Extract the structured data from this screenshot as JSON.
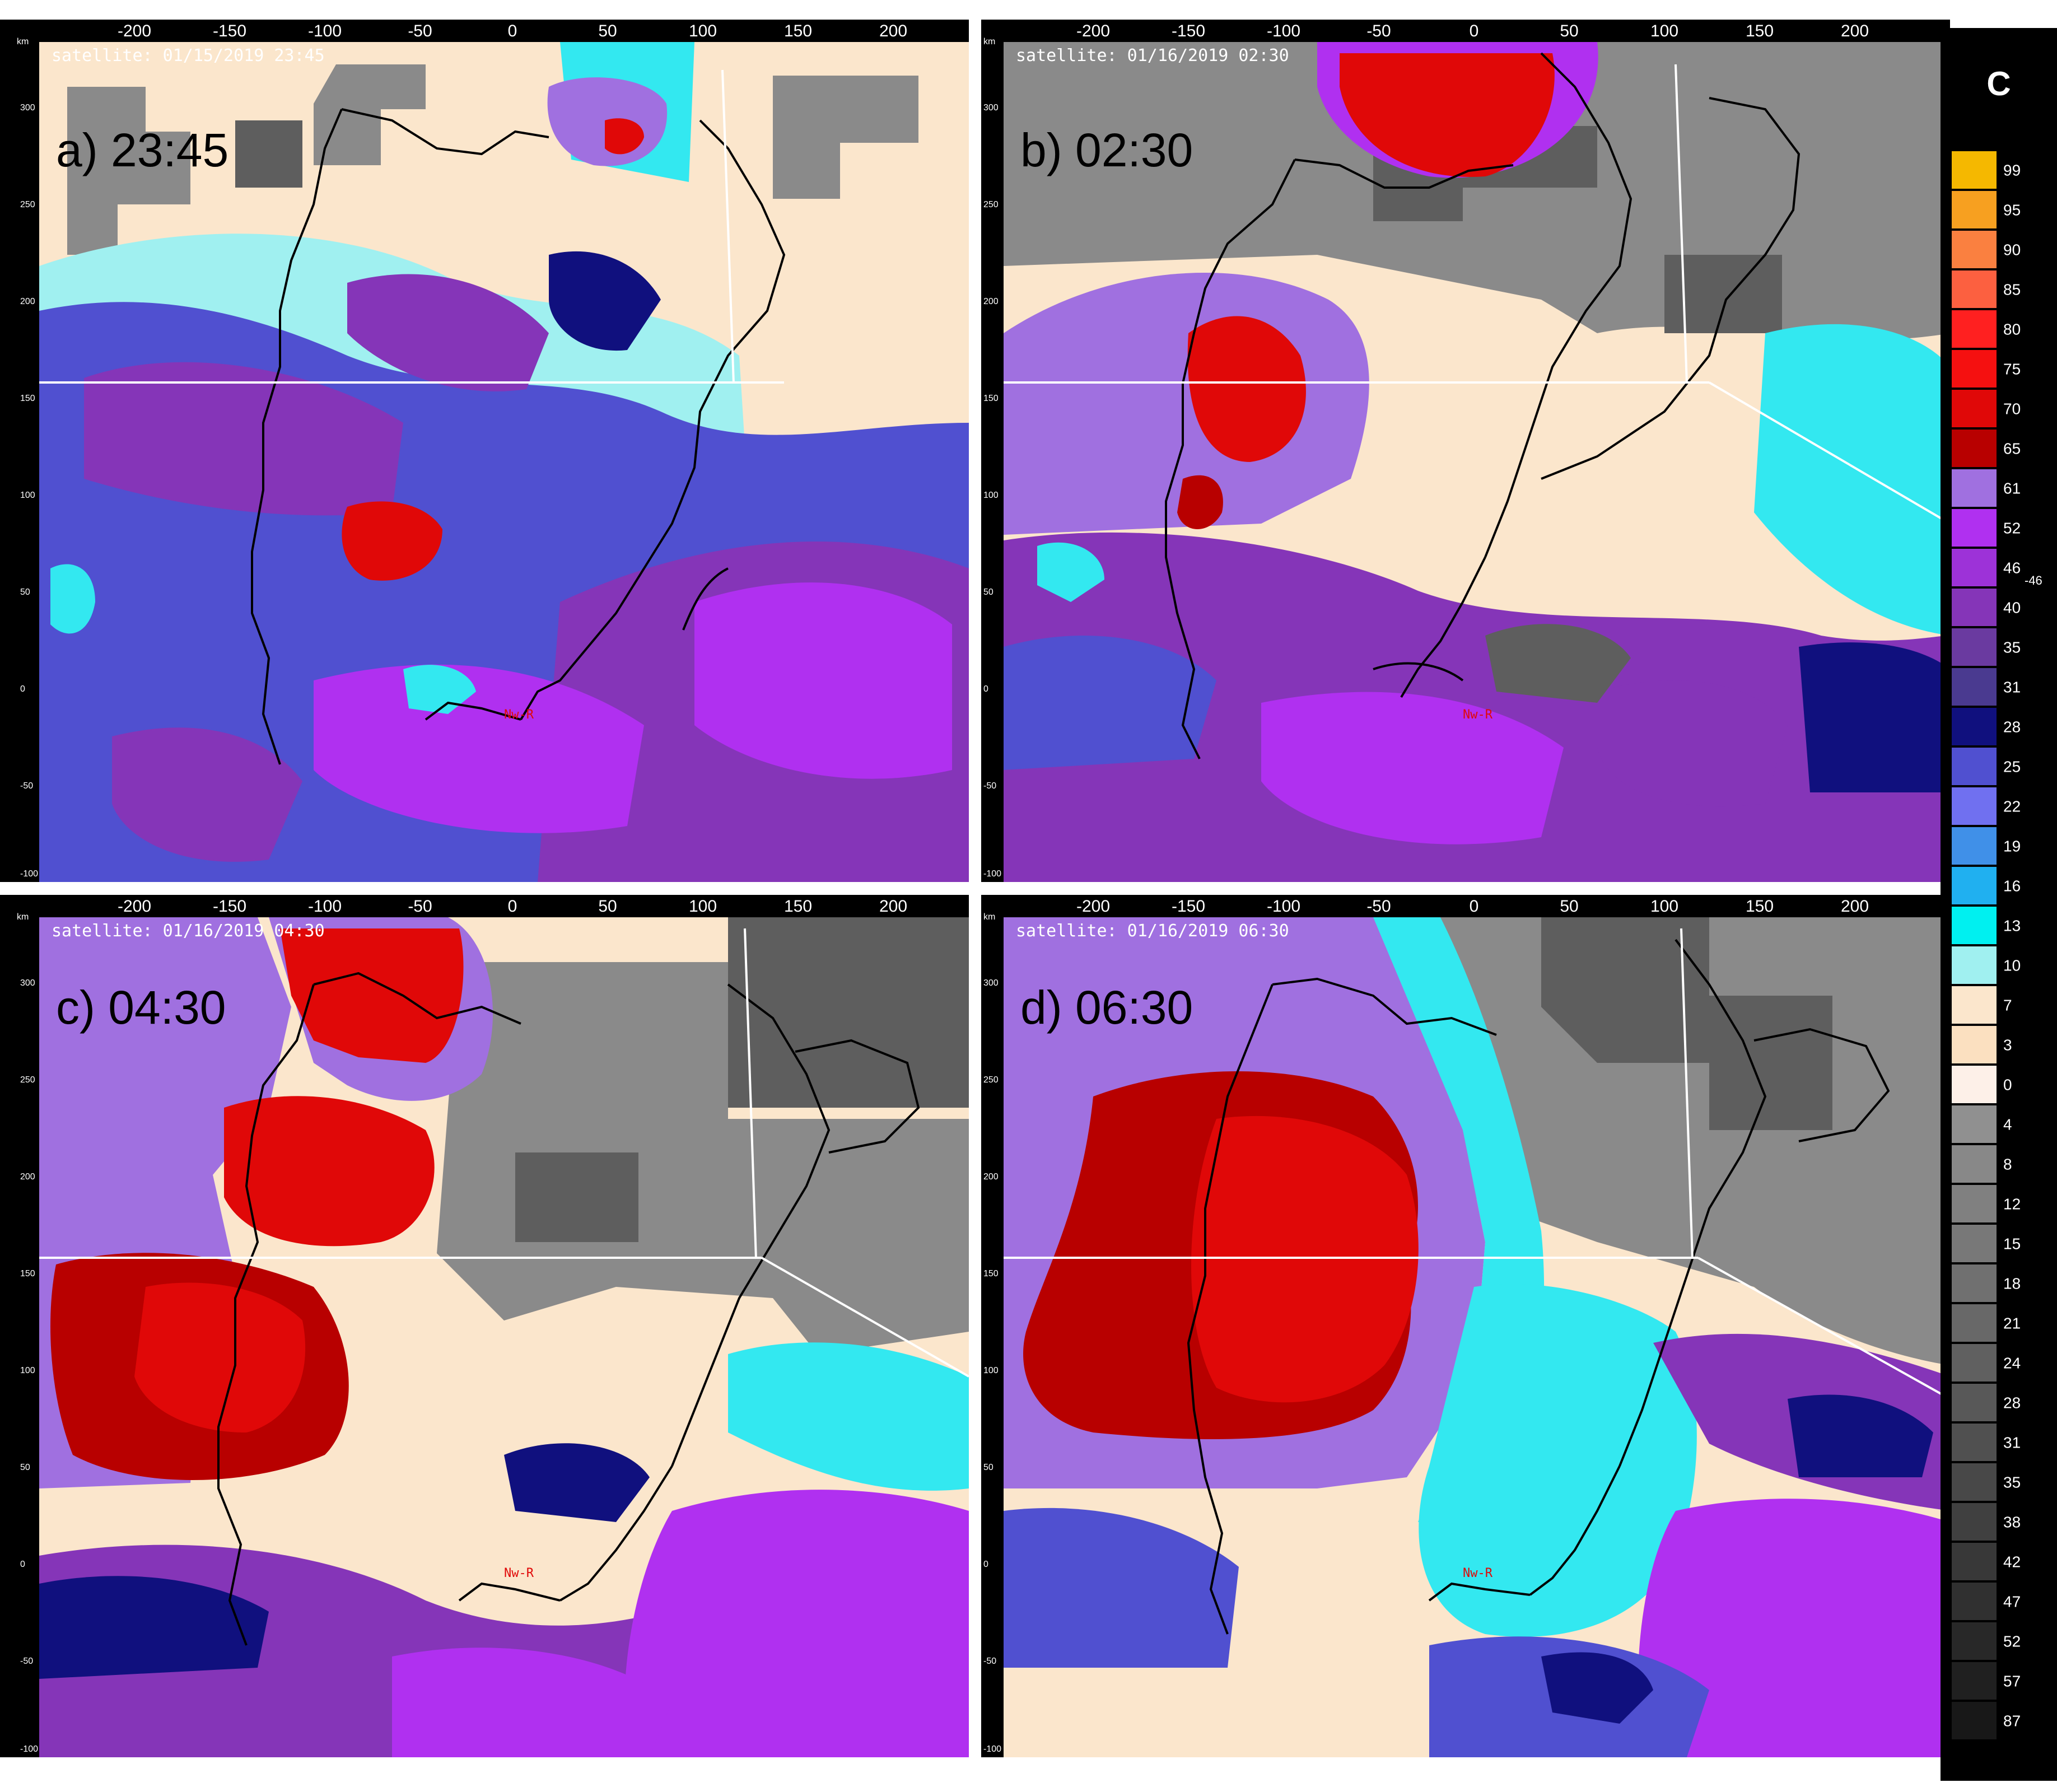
{
  "panels": [
    {
      "label": "a) 23:45",
      "timestamp": "satellite: 01/15/2019 23:45",
      "site_label": "Nw-R"
    },
    {
      "label": "b) 02:30",
      "timestamp": "satellite: 01/16/2019 02:30",
      "site_label": "Nw-R"
    },
    {
      "label": "c) 04:30",
      "timestamp": "satellite: 01/16/2019 04:30",
      "site_label": "Nw-R"
    },
    {
      "label": "d) 06:30",
      "timestamp": "satellite: 01/16/2019 06:30",
      "site_label": "Nw-R"
    }
  ],
  "x_axis": {
    "unit": "km",
    "ticks": [
      "-200",
      "-150",
      "-100",
      "-50",
      "0",
      "50",
      "100",
      "150",
      "200"
    ]
  },
  "y_axis": {
    "unit": "km",
    "ticks": [
      "300",
      "250",
      "200",
      "150",
      "100",
      "50",
      "0",
      "-50",
      "-100"
    ]
  },
  "colorbar": {
    "title": "C",
    "marker": "-46",
    "entries": [
      {
        "label": "99",
        "color": "#f5b800"
      },
      {
        "label": "95",
        "color": "#f7a020"
      },
      {
        "label": "90",
        "color": "#fa8040"
      },
      {
        "label": "85",
        "color": "#fc6040"
      },
      {
        "label": "80",
        "color": "#ff2020"
      },
      {
        "label": "75",
        "color": "#f51010"
      },
      {
        "label": "70",
        "color": "#e00808"
      },
      {
        "label": "65",
        "color": "#b80000"
      },
      {
        "label": "61",
        "color": "#a070e0"
      },
      {
        "label": "52",
        "color": "#b030f0"
      },
      {
        "label": "46",
        "color": "#9d32d8"
      },
      {
        "label": "40",
        "color": "#8535b8"
      },
      {
        "label": "35",
        "color": "#6a3aa0"
      },
      {
        "label": "31",
        "color": "#4a3a90"
      },
      {
        "label": "28",
        "color": "#10107e"
      },
      {
        "label": "25",
        "color": "#5050d0"
      },
      {
        "label": "22",
        "color": "#7070f0"
      },
      {
        "label": "19",
        "color": "#4090e8"
      },
      {
        "label": "16",
        "color": "#20b0f0"
      },
      {
        "label": "13",
        "color": "#00f0f0"
      },
      {
        "label": "10",
        "color": "#a0f0f0"
      },
      {
        "label": "7",
        "color": "#fbe6cc"
      },
      {
        "label": "3",
        "color": "#fbe0c0"
      },
      {
        "label": "0",
        "color": "#fdf0e8"
      },
      {
        "label": "4",
        "color": "#909090"
      },
      {
        "label": "8",
        "color": "#888888"
      },
      {
        "label": "12",
        "color": "#808080"
      },
      {
        "label": "15",
        "color": "#787878"
      },
      {
        "label": "18",
        "color": "#707070"
      },
      {
        "label": "21",
        "color": "#686868"
      },
      {
        "label": "24",
        "color": "#606060"
      },
      {
        "label": "28",
        "color": "#585858"
      },
      {
        "label": "31",
        "color": "#505050"
      },
      {
        "label": "35",
        "color": "#484848"
      },
      {
        "label": "38",
        "color": "#404040"
      },
      {
        "label": "42",
        "color": "#383838"
      },
      {
        "label": "47",
        "color": "#303030"
      },
      {
        "label": "52",
        "color": "#282828"
      },
      {
        "label": "57",
        "color": "#202020"
      },
      {
        "label": "87",
        "color": "#181818"
      }
    ]
  },
  "palette": {
    "background_cool": "#fbe6cc",
    "gray": "#8a8a8a",
    "dark_gray": "#5e5e5e",
    "cyan": "#33e8f0",
    "light_cyan": "#a0f0f0",
    "blue": "#5050d0",
    "navy": "#10107e",
    "purple": "#8535b8",
    "violet": "#b030f0",
    "lavender": "#a070e0",
    "red": "#e00808",
    "dark_red": "#b80000"
  }
}
